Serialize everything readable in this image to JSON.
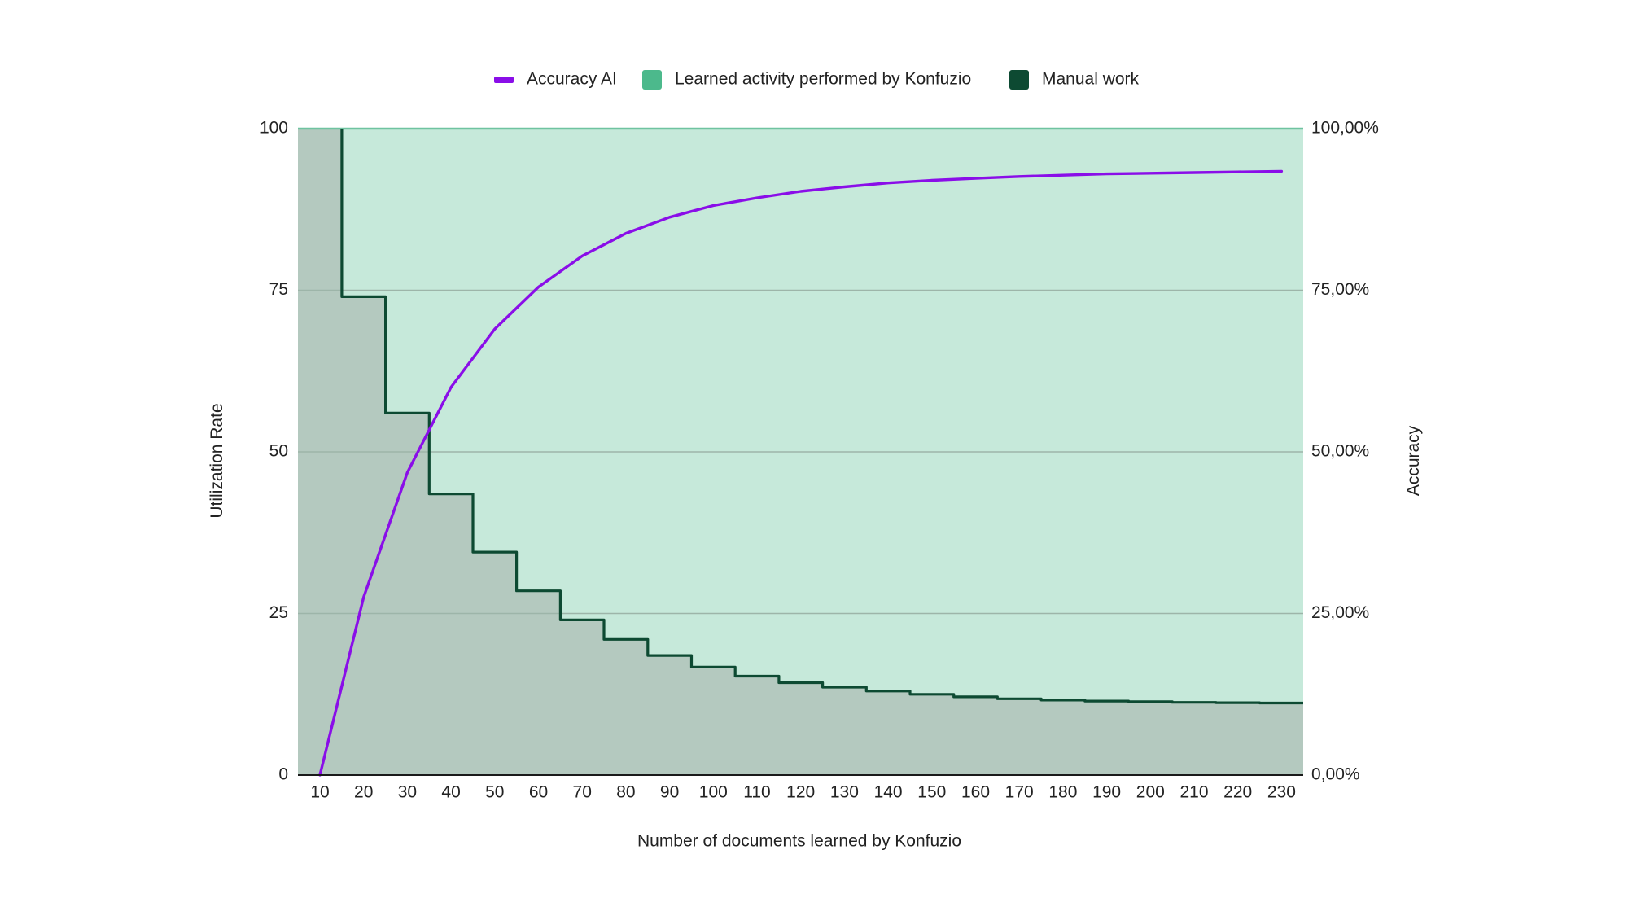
{
  "chart_data": {
    "type": "area",
    "title": "",
    "xlabel": "Number of documents learned by Konfuzio",
    "ylabel_left": "Utilization Rate",
    "ylabel_right": "Accuracy",
    "x_categories": [
      10,
      20,
      30,
      40,
      50,
      60,
      70,
      80,
      90,
      100,
      110,
      120,
      130,
      140,
      150,
      160,
      170,
      180,
      190,
      200,
      210,
      220,
      230
    ],
    "y_left_ticks": [
      "0",
      "25",
      "50",
      "75",
      "100"
    ],
    "y_right_ticks": [
      "0,00%",
      "25,00%",
      "50,00%",
      "75,00%",
      "100,00%"
    ],
    "y_left_range": [
      0,
      100
    ],
    "y_right_range": [
      0,
      1
    ],
    "grid": true,
    "legend_position": "top",
    "colors": {
      "accuracy": "#8a0ee8",
      "learned_fill": "#c6e9da",
      "learned_legend": "#4cb98c",
      "manual_fill": "#b4c9bf",
      "manual_line": "#0d4a32",
      "gridline": "#9db5a9",
      "top_line": "#6fc3a0",
      "axis_line": "#1a1a1a"
    },
    "series": [
      {
        "name": "Accuracy AI",
        "type": "line",
        "axis": "right",
        "x": [
          10,
          20,
          30,
          40,
          50,
          60,
          70,
          80,
          90,
          100,
          110,
          120,
          130,
          140,
          150,
          160,
          170,
          180,
          190,
          200,
          210,
          220,
          230
        ],
        "values": [
          0.0,
          0.275,
          0.468,
          0.6,
          0.69,
          0.755,
          0.803,
          0.838,
          0.863,
          0.881,
          0.893,
          0.903,
          0.91,
          0.916,
          0.92,
          0.923,
          0.926,
          0.928,
          0.93,
          0.931,
          0.932,
          0.933,
          0.934
        ]
      },
      {
        "name": "Learned activity performed by Konfuzio",
        "type": "area",
        "axis": "left",
        "note_value": 100
      },
      {
        "name": "Manual work",
        "type": "step-area",
        "axis": "left",
        "x_edges": [
          10,
          15,
          25,
          35,
          45,
          55,
          65,
          75,
          85,
          95,
          105,
          115,
          125,
          135,
          145,
          155,
          165,
          175,
          185,
          195,
          205,
          215,
          225,
          235
        ],
        "values": [
          100,
          74,
          56,
          43.5,
          34.5,
          28.5,
          24,
          21,
          18.5,
          16.7,
          15.3,
          14.3,
          13.6,
          13.0,
          12.5,
          12.1,
          11.8,
          11.6,
          11.45,
          11.35,
          11.25,
          11.2,
          11.15
        ]
      }
    ]
  }
}
